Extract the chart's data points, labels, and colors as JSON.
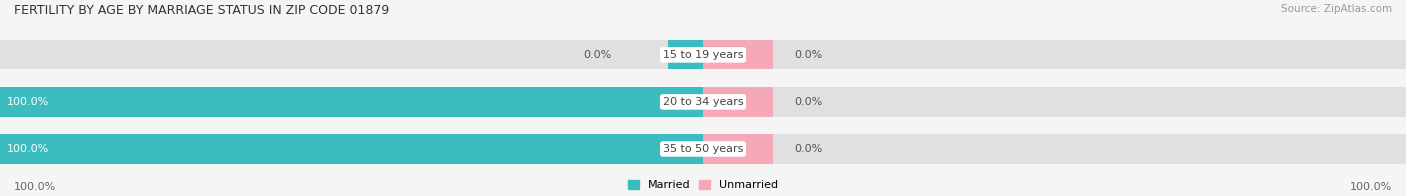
{
  "title": "FERTILITY BY AGE BY MARRIAGE STATUS IN ZIP CODE 01879",
  "source": "Source: ZipAtlas.com",
  "categories": [
    "15 to 19 years",
    "20 to 34 years",
    "35 to 50 years"
  ],
  "married_values": [
    0.0,
    100.0,
    100.0
  ],
  "unmarried_values": [
    0.0,
    0.0,
    0.0
  ],
  "married_color": "#3bbcbe",
  "unmarried_color": "#f4a8b8",
  "bar_bg_color": "#e8e8e8",
  "label_left_married": [
    "0.0%",
    "100.0%",
    "100.0%"
  ],
  "label_right_unmarried": [
    "0.0%",
    "0.0%",
    "0.0%"
  ],
  "x_axis_left_label": "100.0%",
  "x_axis_right_label": "100.0%",
  "title_fontsize": 9,
  "source_fontsize": 7.5,
  "label_fontsize": 8,
  "background_color": "#f5f5f5",
  "bar_background": "#e0e0e0",
  "fig_width": 14.06,
  "fig_height": 1.96
}
